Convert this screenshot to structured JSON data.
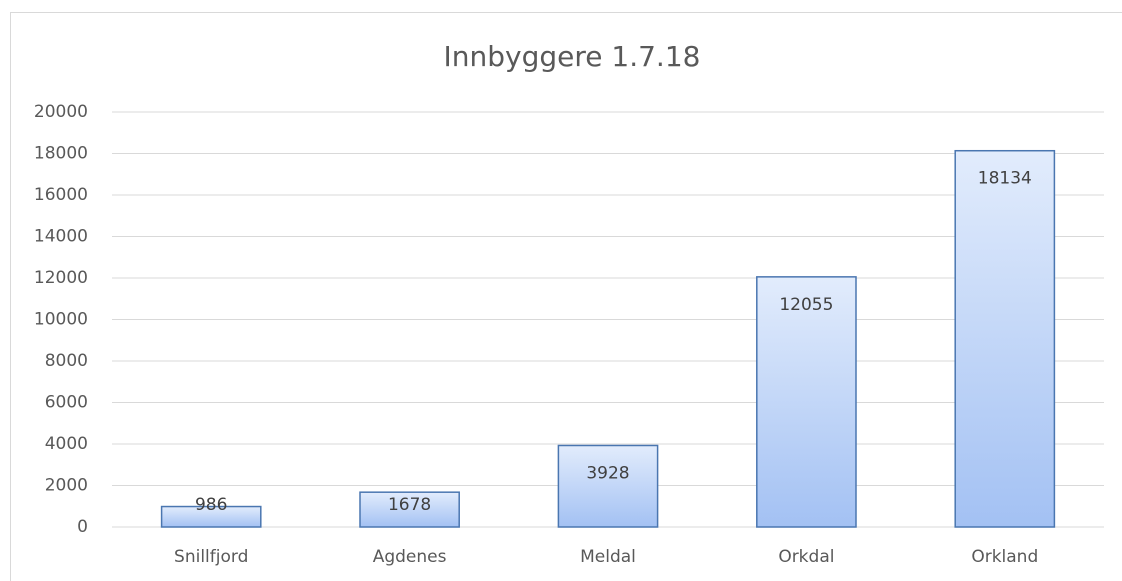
{
  "chart_data": {
    "type": "bar",
    "title": "Innbyggere 1.7.18",
    "categories": [
      "Snillfjord",
      "Agdenes",
      "Meldal",
      "Orkdal",
      "Orkland"
    ],
    "values": [
      986,
      1678,
      3928,
      12055,
      18134
    ],
    "color": "#4a76b0",
    "ylim": [
      0,
      20000
    ],
    "yticks": [
      0,
      2000,
      4000,
      6000,
      8000,
      10000,
      12000,
      14000,
      16000,
      18000,
      20000
    ],
    "grid": true
  }
}
